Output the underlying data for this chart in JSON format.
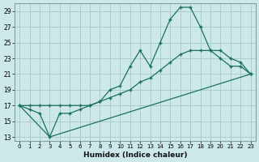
{
  "xlabel": "Humidex (Indice chaleur)",
  "bg_color": "#cce8e8",
  "grid_color": "#aacccc",
  "line_color": "#1a7060",
  "ylim": [
    12.5,
    30
  ],
  "xlim": [
    -0.5,
    23.5
  ],
  "yticks": [
    13,
    15,
    17,
    19,
    21,
    23,
    25,
    27,
    29
  ],
  "xticks": [
    0,
    1,
    2,
    3,
    4,
    5,
    6,
    7,
    8,
    9,
    10,
    11,
    12,
    13,
    14,
    15,
    16,
    17,
    18,
    19,
    20,
    21,
    22,
    23
  ],
  "line1_x": [
    0,
    1,
    2,
    3,
    4,
    5,
    6,
    7,
    8,
    9,
    10,
    11,
    12,
    13,
    14,
    15,
    16,
    17,
    18,
    19,
    20,
    21,
    22,
    23
  ],
  "line1_y": [
    17,
    16.5,
    16,
    13,
    16,
    16,
    16.5,
    17,
    17.5,
    19,
    19.5,
    22,
    24,
    22,
    25,
    28,
    29.5,
    29.5,
    27,
    24,
    23,
    22,
    22,
    21
  ],
  "line2_x": [
    0,
    1,
    2,
    3,
    4,
    5,
    6,
    7,
    8,
    9,
    10,
    11,
    12,
    13,
    14,
    15,
    16,
    17,
    18,
    19,
    20,
    21,
    22,
    23
  ],
  "line2_y": [
    17,
    17,
    17,
    17,
    17,
    17,
    17,
    17,
    17.5,
    18,
    18.5,
    19,
    20,
    20.5,
    21.5,
    22.5,
    23.5,
    24,
    24,
    24,
    24,
    23,
    22.5,
    21
  ],
  "line3_x": [
    0,
    3,
    23
  ],
  "line3_y": [
    17,
    13,
    21
  ]
}
